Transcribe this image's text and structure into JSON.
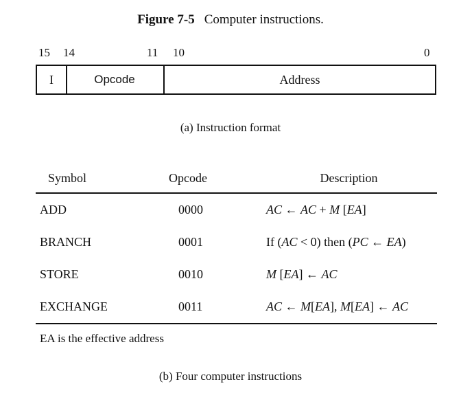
{
  "figure": {
    "label": "Figure 7-5",
    "title": "Computer instructions."
  },
  "format": {
    "bit_labels": [
      "15",
      "14",
      "11",
      "10",
      "0"
    ],
    "fields": [
      "I",
      "Opcode",
      "Address"
    ],
    "caption": "(a) Instruction format"
  },
  "table": {
    "headers": [
      "Symbol",
      "Opcode",
      "Description"
    ],
    "rows": [
      {
        "symbol": "ADD",
        "opcode": "0000",
        "description": "AC ← AC + M [EA]"
      },
      {
        "symbol": "BRANCH",
        "opcode": "0001",
        "description": "If (AC < 0) then (PC ← EA)"
      },
      {
        "symbol": "STORE",
        "opcode": "0010",
        "description": "M [EA] ← AC"
      },
      {
        "symbol": "EXCHANGE",
        "opcode": "0011",
        "description": "AC ← M[EA], M[EA] ← AC"
      }
    ],
    "note": "EA is the effective address",
    "caption": "(b) Four computer instructions"
  }
}
